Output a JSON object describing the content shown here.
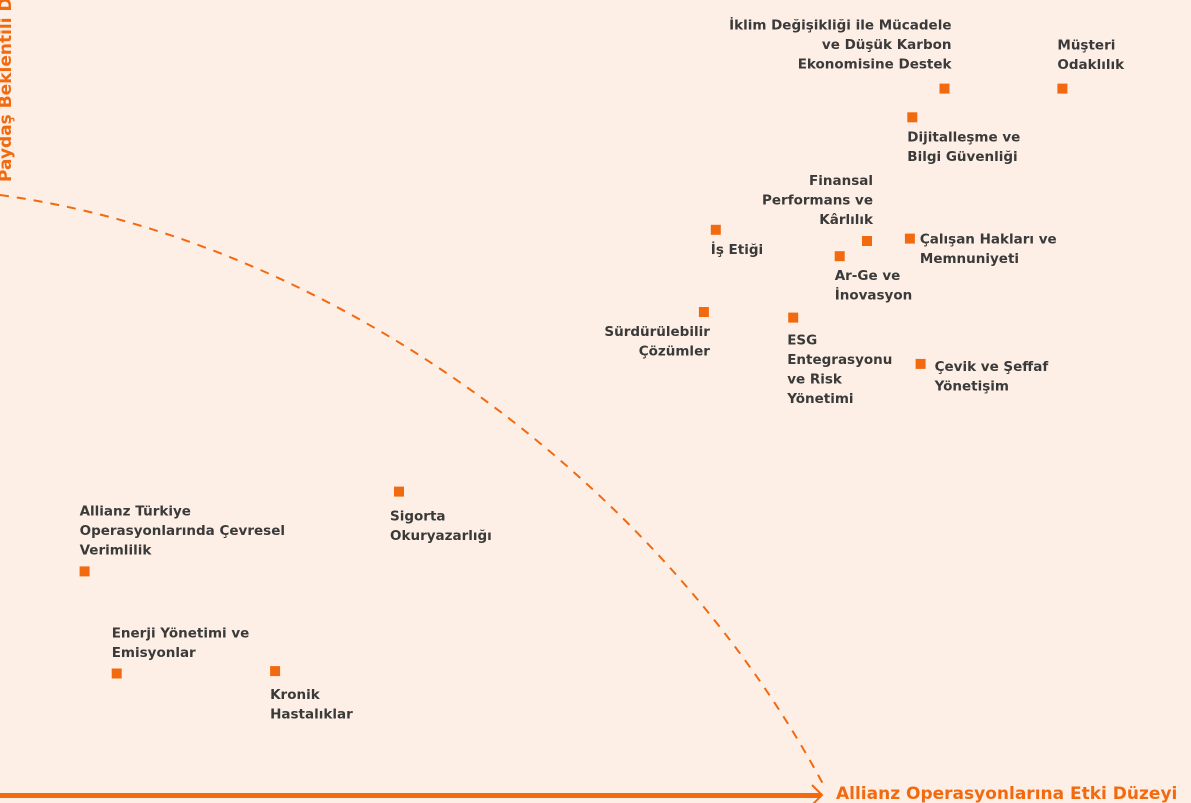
{
  "chart_data": {
    "type": "scatter",
    "title": "",
    "xlabel": "Allianz Operasyonlarına Etki Düzeyi",
    "ylabel": "Paydaş Beklentili Düzeyi",
    "xlim": [
      0,
      100
    ],
    "ylim": [
      0,
      100
    ],
    "grid": false,
    "legend": "none",
    "colors": {
      "marker": "#f26a10",
      "axis": "#f26a10",
      "text": "#3a3a3a",
      "background": "#fdefe5"
    },
    "points": [
      {
        "lines": [
          "İklim Değişikliği ile Mücadele",
          "ve Düşük Karbon",
          "Ekonomisine Destek"
        ],
        "x": 79.3,
        "y": 88.9
      },
      {
        "lines": [
          "Müşteri",
          "Odaklılık"
        ],
        "x": 89.2,
        "y": 88.9
      },
      {
        "lines": [
          "Dijitalleşme ve",
          "Bilgi Güvenliği"
        ],
        "x": 76.6,
        "y": 85.3
      },
      {
        "lines": [
          "Finansal",
          "Performans ve",
          "Kârlılık"
        ],
        "x": 72.8,
        "y": 69.8
      },
      {
        "lines": [
          "Çalışan Hakları ve",
          "Memnuniyeti"
        ],
        "x": 76.4,
        "y": 70.1
      },
      {
        "lines": [
          "İş Etiği"
        ],
        "x": 60.1,
        "y": 71.2
      },
      {
        "lines": [
          "Ar-Ge ve",
          "İnovasyon"
        ],
        "x": 70.5,
        "y": 67.9
      },
      {
        "lines": [
          "Sürdürülebilir",
          "Çözümler"
        ],
        "x": 59.1,
        "y": 60.9
      },
      {
        "lines": [
          "ESG",
          "Entegrasyonu",
          "ve Risk",
          "Yönetimi"
        ],
        "x": 66.6,
        "y": 60.2
      },
      {
        "lines": [
          "Çevik ve Şeffaf",
          "Yönetişim"
        ],
        "x": 77.3,
        "y": 54.4
      },
      {
        "lines": [
          "Sigorta",
          "Okuryazarlığı"
        ],
        "x": 33.5,
        "y": 38.4
      },
      {
        "lines": [
          "Allianz Türkiye",
          "Operasyonlarında Çevresel",
          "Verimlilik"
        ],
        "x": 7.1,
        "y": 28.4
      },
      {
        "lines": [
          "Enerji Yönetimi ve",
          "Emisyonlar"
        ],
        "x": 9.8,
        "y": 15.6
      },
      {
        "lines": [
          "Kronik",
          "Hastalıklar"
        ],
        "x": 23.1,
        "y": 15.9
      }
    ]
  }
}
